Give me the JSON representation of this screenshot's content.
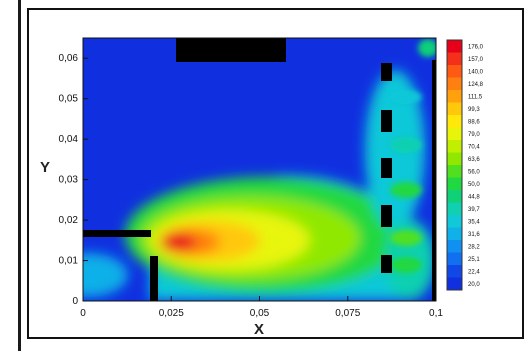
{
  "chart_data": {
    "type": "heatmap",
    "title": "",
    "xlabel": "X",
    "ylabel": "Y",
    "xlim": [
      0,
      0.1
    ],
    "ylim": [
      0,
      0.065
    ],
    "x_ticks": [
      "0",
      "0,025",
      "0,05",
      "0,075",
      "0,1"
    ],
    "x_tick_values": [
      0,
      0.025,
      0.05,
      0.075,
      0.1
    ],
    "y_ticks": [
      "0",
      "0,01",
      "0,02",
      "0,03",
      "0,04",
      "0,05",
      "0,06"
    ],
    "y_tick_values": [
      0,
      0.01,
      0.02,
      0.03,
      0.04,
      0.05,
      0.06
    ],
    "colorbar": {
      "labels": [
        "176,0",
        "157,0",
        "140,0",
        "124,8",
        "111,5",
        "99,3",
        "88,6",
        "79,0",
        "70,4",
        "63,6",
        "56,0",
        "50,0",
        "44,8",
        "39,7",
        "35,4",
        "31,6",
        "28,2",
        "25,1",
        "22,4",
        "20,0"
      ],
      "colors": [
        "#e8001a",
        "#f5301a",
        "#ff5a14",
        "#ff8010",
        "#ffa00c",
        "#ffc80a",
        "#ffe80a",
        "#e8f50a",
        "#c0f000",
        "#90e800",
        "#50e020",
        "#20d840",
        "#10d078",
        "#10d0b0",
        "#10c8d8",
        "#10b0e8",
        "#1090f0",
        "#1070f0",
        "#1048e8",
        "#1030e0"
      ]
    },
    "background_color": "#1030e0",
    "obstacle_color": "#000000"
  }
}
